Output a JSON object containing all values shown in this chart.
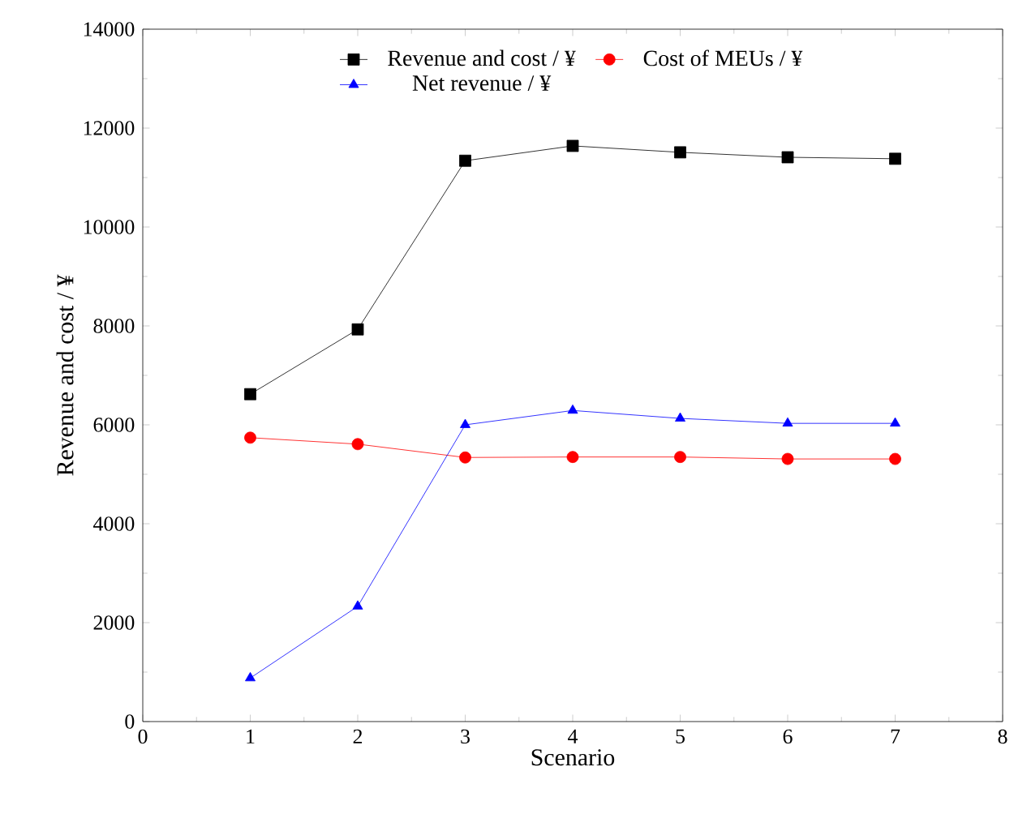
{
  "chart_data": {
    "type": "line",
    "xlabel": "Scenario",
    "ylabel": "Revenue and cost / ¥",
    "x": [
      1,
      2,
      3,
      4,
      5,
      6,
      7
    ],
    "series": [
      {
        "name": "Revenue and cost / ¥",
        "color": "#000000",
        "marker": "square",
        "values": [
          6620,
          7930,
          11340,
          11640,
          11510,
          11410,
          11380
        ]
      },
      {
        "name": "Cost of MEUs / ¥",
        "color": "#ff0000",
        "marker": "circle",
        "values": [
          5740,
          5610,
          5340,
          5350,
          5350,
          5310,
          5310
        ]
      },
      {
        "name": "Net revenue / ¥",
        "color": "#0000ff",
        "marker": "triangle",
        "values": [
          880,
          2330,
          6000,
          6290,
          6130,
          6030,
          6030
        ]
      }
    ],
    "xlim": [
      0,
      8
    ],
    "xticks": [
      0,
      1,
      2,
      3,
      4,
      5,
      6,
      7,
      8
    ],
    "ylim": [
      0,
      14000
    ],
    "yticks": [
      0,
      2000,
      4000,
      6000,
      8000,
      10000,
      12000,
      14000
    ],
    "grid": false,
    "legend": "top",
    "line_style": "solid"
  }
}
